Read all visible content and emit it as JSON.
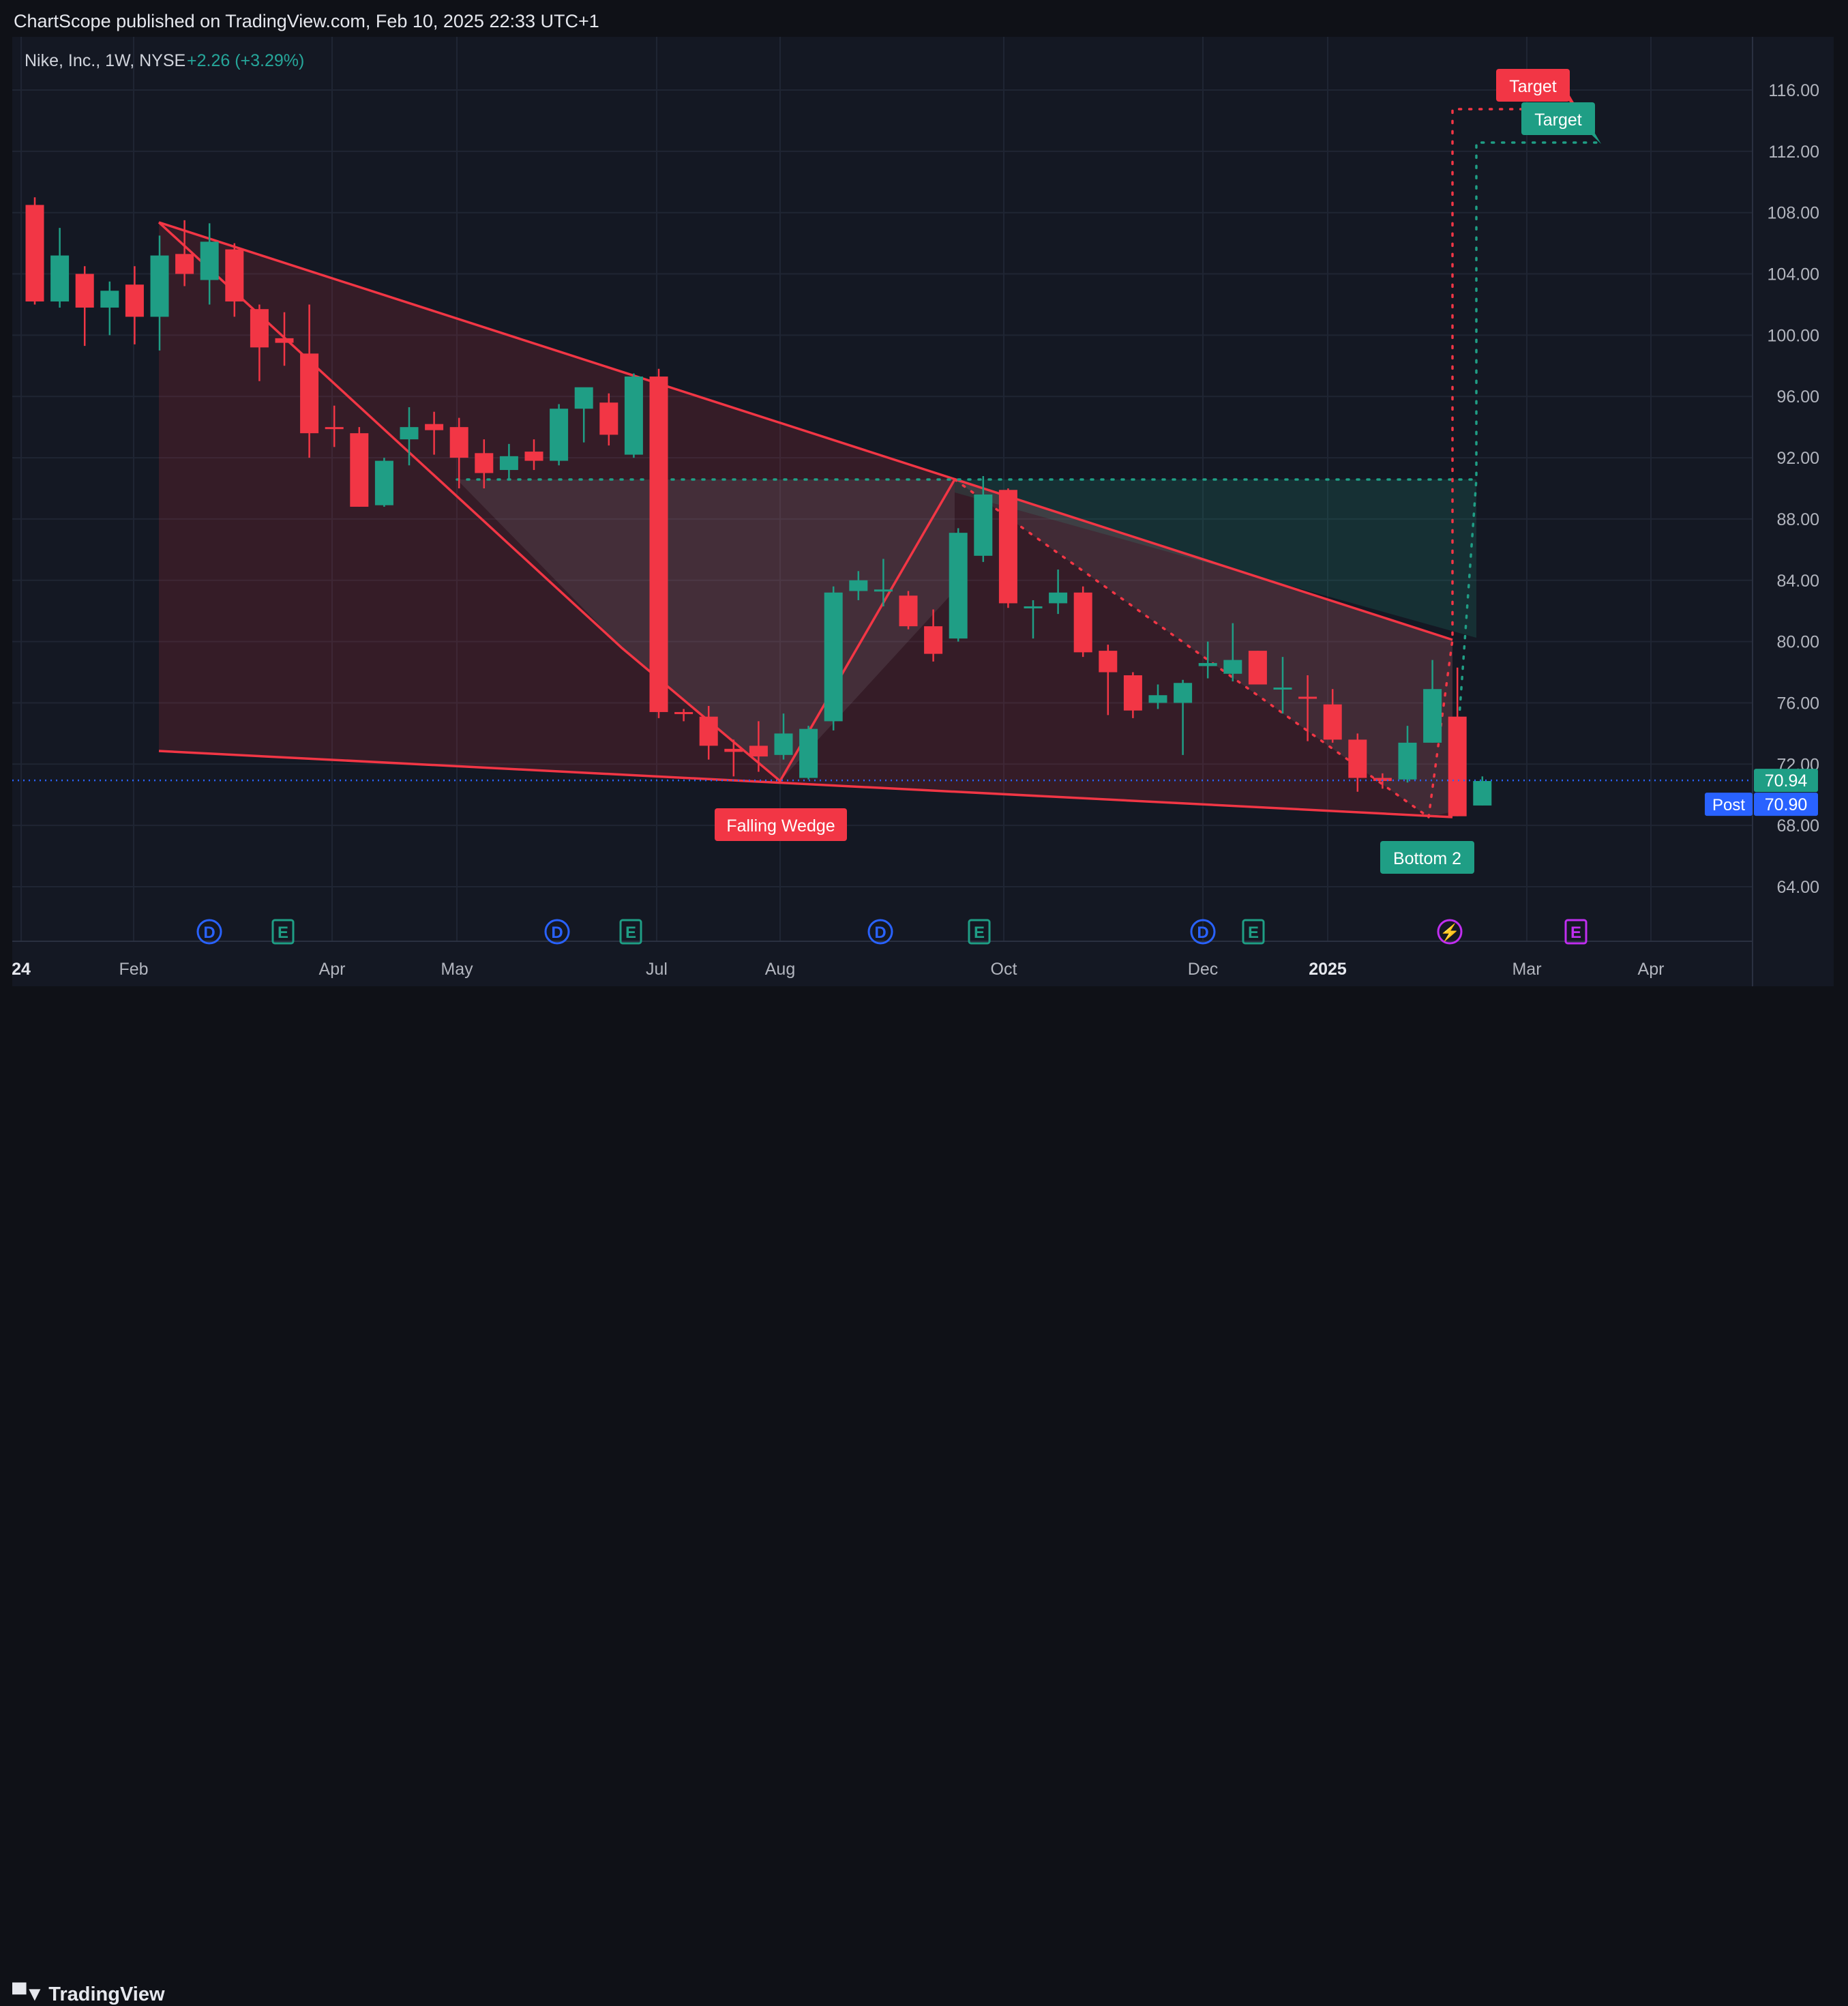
{
  "header": {
    "published": "ChartScope published on TradingView.com, Feb 10, 2025 22:33 UTC+1"
  },
  "footer": {
    "brand": "TradingView"
  },
  "legend": {
    "symbol": "Nike, Inc., 1W, NYSE",
    "change": "+2.26 (+3.29%)"
  },
  "colors": {
    "bull": "#1f9e85",
    "bear": "#f23645",
    "background": "#141823",
    "grid": "#1f2533",
    "accent_blue": "#2962ff",
    "event_purple": "#c02ef0"
  },
  "chart_data": {
    "type": "candlestick",
    "title": "Nike, Inc., 1W, NYSE",
    "y_axis": {
      "min": 60,
      "max": 120,
      "ticks": [
        64,
        68,
        72,
        76,
        80,
        84,
        88,
        92,
        96,
        100,
        104,
        108,
        112,
        116
      ],
      "position": "right",
      "scale": "linear"
    },
    "x_axis": {
      "ticks": [
        "24",
        "Feb",
        "Apr",
        "May",
        "Jul",
        "Aug",
        "Oct",
        "Dec",
        "2025",
        "Mar",
        "Apr"
      ]
    },
    "grid": true,
    "candles": [
      {
        "o": 108.5,
        "h": 109.0,
        "l": 102.0,
        "c": 102.2
      },
      {
        "o": 102.2,
        "h": 107.0,
        "l": 101.8,
        "c": 105.2
      },
      {
        "o": 104.0,
        "h": 104.5,
        "l": 99.3,
        "c": 101.8
      },
      {
        "o": 101.8,
        "h": 103.5,
        "l": 100.0,
        "c": 102.9
      },
      {
        "o": 103.3,
        "h": 104.5,
        "l": 99.4,
        "c": 101.2
      },
      {
        "o": 101.2,
        "h": 106.5,
        "l": 99.0,
        "c": 105.2
      },
      {
        "o": 105.3,
        "h": 107.5,
        "l": 103.2,
        "c": 104.0
      },
      {
        "o": 103.6,
        "h": 107.3,
        "l": 102.0,
        "c": 106.1
      },
      {
        "o": 105.6,
        "h": 106.0,
        "l": 101.2,
        "c": 102.2
      },
      {
        "o": 101.7,
        "h": 102.0,
        "l": 97.0,
        "c": 99.2
      },
      {
        "o": 99.8,
        "h": 101.5,
        "l": 98.0,
        "c": 99.5
      },
      {
        "o": 98.8,
        "h": 102.0,
        "l": 92.0,
        "c": 93.6
      },
      {
        "o": 94.0,
        "h": 95.4,
        "l": 92.7,
        "c": 93.9
      },
      {
        "o": 93.6,
        "h": 94.0,
        "l": 88.8,
        "c": 88.8
      },
      {
        "o": 88.9,
        "h": 92.0,
        "l": 88.8,
        "c": 91.8
      },
      {
        "o": 93.2,
        "h": 95.3,
        "l": 91.5,
        "c": 94.0
      },
      {
        "o": 94.2,
        "h": 95.0,
        "l": 92.2,
        "c": 93.8
      },
      {
        "o": 94.0,
        "h": 94.6,
        "l": 90.0,
        "c": 92.0
      },
      {
        "o": 92.3,
        "h": 93.2,
        "l": 90.0,
        "c": 91.0
      },
      {
        "o": 91.2,
        "h": 92.9,
        "l": 90.6,
        "c": 92.1
      },
      {
        "o": 92.4,
        "h": 93.2,
        "l": 91.2,
        "c": 91.8
      },
      {
        "o": 91.8,
        "h": 95.5,
        "l": 91.5,
        "c": 95.2
      },
      {
        "o": 95.2,
        "h": 96.5,
        "l": 93.0,
        "c": 96.6
      },
      {
        "o": 95.6,
        "h": 96.2,
        "l": 92.8,
        "c": 93.5
      },
      {
        "o": 92.2,
        "h": 97.5,
        "l": 92.0,
        "c": 97.3
      },
      {
        "o": 97.3,
        "h": 97.8,
        "l": 75.0,
        "c": 75.4
      },
      {
        "o": 75.4,
        "h": 75.6,
        "l": 74.8,
        "c": 75.3
      },
      {
        "o": 75.1,
        "h": 75.8,
        "l": 72.3,
        "c": 73.2
      },
      {
        "o": 73.0,
        "h": 73.6,
        "l": 71.2,
        "c": 72.8
      },
      {
        "o": 73.2,
        "h": 74.8,
        "l": 71.5,
        "c": 72.5
      },
      {
        "o": 72.6,
        "h": 75.3,
        "l": 72.3,
        "c": 74.0
      },
      {
        "o": 71.1,
        "h": 74.5,
        "l": 71.0,
        "c": 74.3
      },
      {
        "o": 74.8,
        "h": 83.6,
        "l": 74.2,
        "c": 83.2
      },
      {
        "o": 83.3,
        "h": 84.6,
        "l": 82.7,
        "c": 84.0
      },
      {
        "o": 83.4,
        "h": 85.4,
        "l": 82.3,
        "c": 83.4
      },
      {
        "o": 83.0,
        "h": 83.3,
        "l": 80.8,
        "c": 81.0
      },
      {
        "o": 81.0,
        "h": 82.1,
        "l": 78.7,
        "c": 79.2
      },
      {
        "o": 80.2,
        "h": 87.4,
        "l": 80.0,
        "c": 87.1
      },
      {
        "o": 85.6,
        "h": 90.8,
        "l": 85.2,
        "c": 89.6
      },
      {
        "o": 89.9,
        "h": 90.0,
        "l": 82.2,
        "c": 82.5
      },
      {
        "o": 82.3,
        "h": 82.7,
        "l": 80.2,
        "c": 82.3
      },
      {
        "o": 82.5,
        "h": 84.7,
        "l": 81.8,
        "c": 83.2
      },
      {
        "o": 83.2,
        "h": 83.6,
        "l": 79.0,
        "c": 79.3
      },
      {
        "o": 79.4,
        "h": 79.8,
        "l": 75.2,
        "c": 78.0
      },
      {
        "o": 77.8,
        "h": 78.0,
        "l": 75.0,
        "c": 75.5
      },
      {
        "o": 76.0,
        "h": 77.2,
        "l": 75.6,
        "c": 76.5
      },
      {
        "o": 76.0,
        "h": 77.5,
        "l": 72.6,
        "c": 77.3
      },
      {
        "o": 78.4,
        "h": 80.0,
        "l": 77.6,
        "c": 78.6
      },
      {
        "o": 77.9,
        "h": 81.2,
        "l": 77.4,
        "c": 78.8
      },
      {
        "o": 79.4,
        "h": 79.4,
        "l": 77.2,
        "c": 77.2
      },
      {
        "o": 76.9,
        "h": 79.0,
        "l": 75.3,
        "c": 77.0
      },
      {
        "o": 76.4,
        "h": 77.8,
        "l": 73.5,
        "c": 76.3
      },
      {
        "o": 75.9,
        "h": 76.9,
        "l": 73.4,
        "c": 73.6
      },
      {
        "o": 73.6,
        "h": 74.0,
        "l": 70.2,
        "c": 71.1
      },
      {
        "o": 71.1,
        "h": 71.4,
        "l": 70.4,
        "c": 70.9
      },
      {
        "o": 71.0,
        "h": 74.5,
        "l": 70.8,
        "c": 73.4
      },
      {
        "o": 73.4,
        "h": 78.8,
        "l": 73.4,
        "c": 76.9
      },
      {
        "o": 75.1,
        "h": 78.3,
        "l": 68.6,
        "c": 68.6
      },
      {
        "o": 69.3,
        "h": 71.2,
        "l": 69.3,
        "c": 70.9
      }
    ],
    "price_labels": [
      {
        "text": "70.94",
        "value": 70.94
      },
      {
        "text": "70.90",
        "value": 70.9,
        "prefix": "Post"
      }
    ],
    "annotations": [
      {
        "text": "Falling Wedge",
        "color": "#f23645"
      },
      {
        "text": "Bottom 2",
        "color": "#1f9e85"
      },
      {
        "text": "Target",
        "color": "#f23645",
        "value": 114.8
      },
      {
        "text": "Target",
        "color": "#1f9e85",
        "value": 112.6
      }
    ],
    "events": [
      "D",
      "E",
      "D",
      "E",
      "D",
      "E",
      "D",
      "E",
      "⚡",
      "E"
    ]
  }
}
